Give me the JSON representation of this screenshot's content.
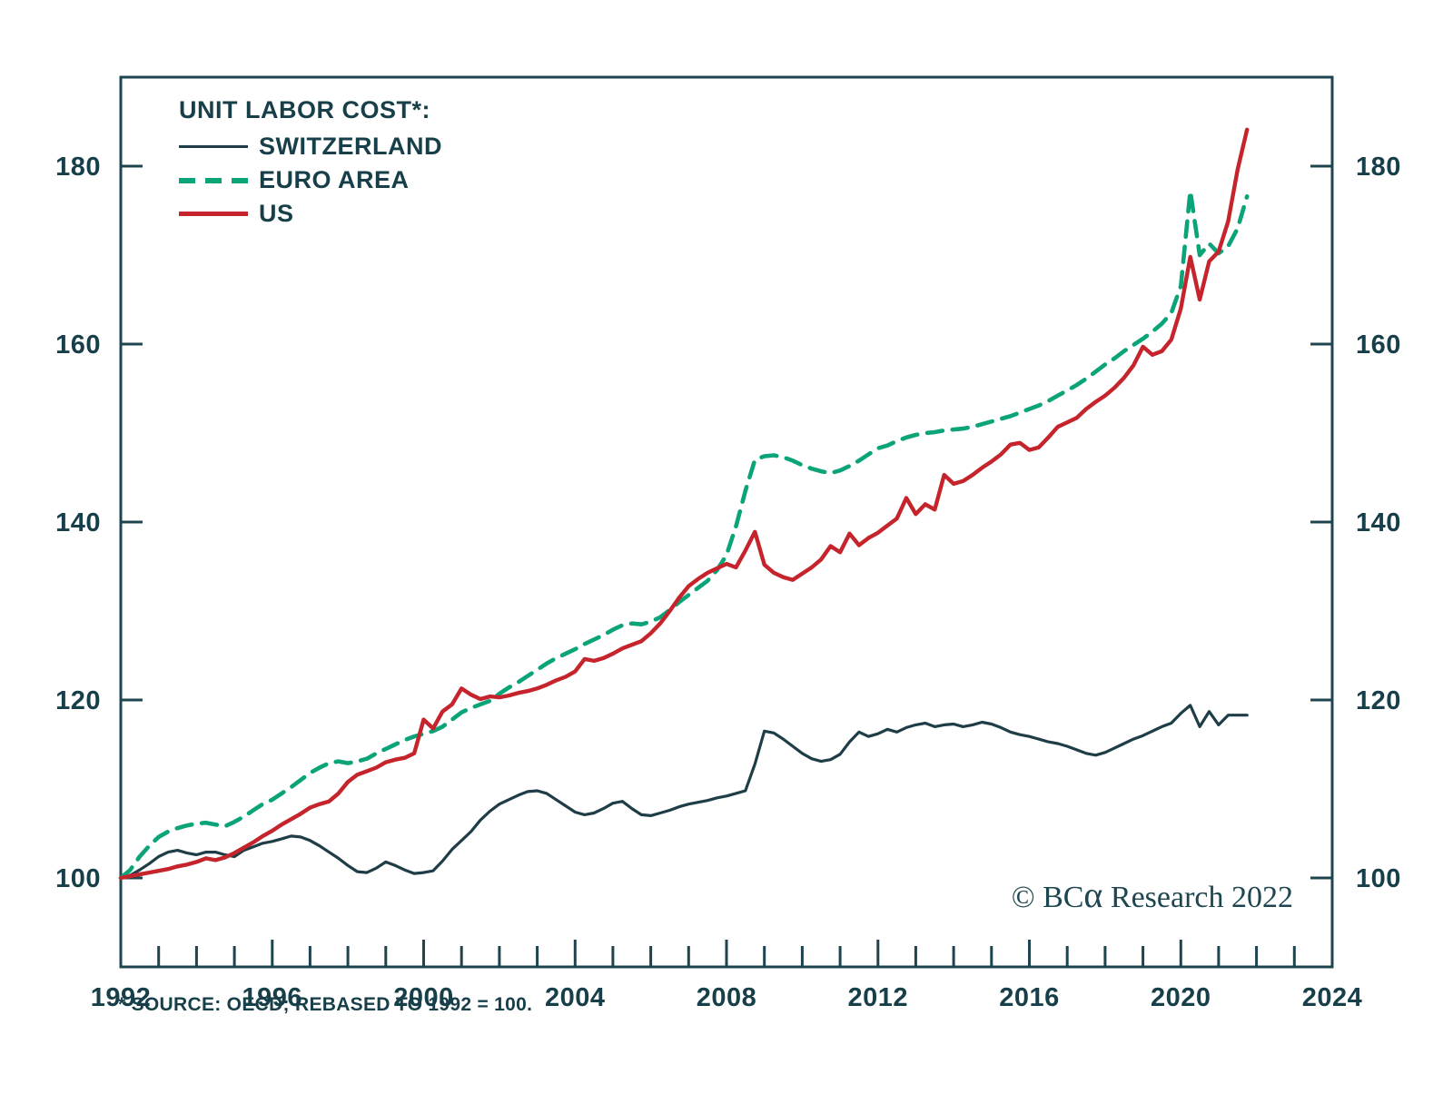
{
  "legend": {
    "title": "UNIT LABOR COST*:"
  },
  "footnote": "* SOURCE: OECD; REBASED TO 1992 = 100.",
  "copyright": {
    "prefix": "© BC",
    "alpha": "α",
    "suffix": " Research",
    "year": "2022"
  },
  "colors": {
    "text": "#173f49",
    "axis": "#1e4450",
    "switzerland": "#1f3d47",
    "euro_area": "#0aa478",
    "us": "#c6242c"
  },
  "chart_data": {
    "type": "line",
    "title": "UNIT LABOR COST*:",
    "xlabel": "",
    "ylabel": "",
    "xlim": [
      1992,
      2024
    ],
    "ylim": [
      90,
      190
    ],
    "x_ticks": [
      1992,
      1996,
      2000,
      2004,
      2008,
      2012,
      2016,
      2020,
      2024
    ],
    "x_minor_step": 1,
    "y_ticks": [
      100,
      120,
      140,
      160,
      180
    ],
    "grid": false,
    "legend_position": "top-left",
    "x_start": 1992,
    "x_step": 0.25,
    "series": [
      {
        "name": "SWITZERLAND",
        "style": "solid",
        "color_key": "switzerland",
        "values": [
          100.0,
          100.3,
          100.9,
          101.6,
          102.4,
          102.9,
          103.1,
          102.8,
          102.6,
          102.9,
          102.9,
          102.6,
          102.4,
          103.1,
          103.5,
          103.9,
          104.1,
          104.4,
          104.7,
          104.6,
          104.2,
          103.6,
          102.9,
          102.2,
          101.4,
          100.7,
          100.6,
          101.1,
          101.8,
          101.4,
          100.9,
          100.5,
          100.6,
          100.8,
          101.9,
          103.2,
          104.2,
          105.2,
          106.5,
          107.5,
          108.3,
          108.8,
          109.3,
          109.7,
          109.8,
          109.5,
          108.8,
          108.1,
          107.4,
          107.1,
          107.3,
          107.8,
          108.4,
          108.6,
          107.8,
          107.1,
          107.0,
          107.3,
          107.6,
          108.0,
          108.3,
          108.5,
          108.7,
          109.0,
          109.2,
          109.5,
          109.8,
          112.8,
          116.5,
          116.3,
          115.6,
          114.8,
          114.0,
          113.4,
          113.1,
          113.3,
          113.9,
          115.3,
          116.4,
          115.9,
          116.2,
          116.7,
          116.4,
          116.9,
          117.2,
          117.4,
          117.0,
          117.2,
          117.3,
          117.0,
          117.2,
          117.5,
          117.3,
          116.9,
          116.4,
          116.1,
          115.9,
          115.6,
          115.3,
          115.1,
          114.8,
          114.4,
          114.0,
          113.8,
          114.1,
          114.6,
          115.1,
          115.6,
          116.0,
          116.5,
          117.0,
          117.4,
          118.5,
          119.4,
          117.0,
          118.7,
          117.2,
          118.3,
          118.3,
          118.3
        ]
      },
      {
        "name": "EURO AREA",
        "style": "dashed",
        "color_key": "euro_area",
        "values": [
          100.0,
          100.9,
          102.4,
          103.6,
          104.6,
          105.2,
          105.6,
          105.9,
          106.1,
          106.2,
          106.0,
          105.8,
          106.3,
          106.9,
          107.6,
          108.3,
          108.8,
          109.5,
          110.2,
          111.0,
          111.8,
          112.4,
          112.9,
          113.1,
          112.9,
          113.1,
          113.4,
          114.0,
          114.5,
          115.0,
          115.5,
          115.9,
          116.2,
          116.5,
          117.0,
          117.8,
          118.6,
          119.1,
          119.5,
          119.9,
          120.7,
          121.4,
          122.0,
          122.7,
          123.4,
          124.1,
          124.7,
          125.2,
          125.7,
          126.3,
          126.8,
          127.3,
          127.9,
          128.4,
          128.6,
          128.5,
          128.8,
          129.3,
          130.1,
          131.0,
          131.8,
          132.6,
          133.4,
          134.6,
          136.3,
          139.5,
          143.5,
          147.0,
          147.4,
          147.5,
          147.3,
          146.9,
          146.4,
          146.0,
          145.7,
          145.5,
          145.8,
          146.3,
          146.9,
          147.6,
          148.3,
          148.6,
          149.1,
          149.5,
          149.8,
          150.0,
          150.1,
          150.3,
          150.4,
          150.5,
          150.7,
          151.0,
          151.3,
          151.6,
          151.9,
          152.3,
          152.7,
          153.1,
          153.6,
          154.2,
          154.8,
          155.4,
          156.1,
          156.9,
          157.7,
          158.4,
          159.2,
          159.9,
          160.6,
          161.4,
          162.3,
          163.5,
          166.5,
          177.2,
          170.0,
          171.3,
          170.2,
          171.0,
          173.0,
          176.6
        ]
      },
      {
        "name": "US",
        "style": "solid",
        "color_key": "us",
        "values": [
          100.0,
          100.2,
          100.4,
          100.6,
          100.8,
          101.0,
          101.3,
          101.5,
          101.8,
          102.2,
          102.0,
          102.3,
          102.8,
          103.4,
          104.0,
          104.7,
          105.3,
          106.0,
          106.6,
          107.2,
          107.9,
          108.3,
          108.6,
          109.5,
          110.8,
          111.6,
          112.0,
          112.4,
          113.0,
          113.3,
          113.5,
          114.0,
          117.8,
          116.8,
          118.7,
          119.5,
          121.3,
          120.6,
          120.1,
          120.4,
          120.3,
          120.5,
          120.8,
          121.0,
          121.3,
          121.7,
          122.2,
          122.6,
          123.2,
          124.6,
          124.4,
          124.7,
          125.2,
          125.8,
          126.2,
          126.6,
          127.5,
          128.6,
          130.0,
          131.5,
          132.8,
          133.6,
          134.3,
          134.8,
          135.3,
          134.9,
          136.8,
          138.9,
          135.2,
          134.3,
          133.8,
          133.5,
          134.2,
          134.9,
          135.8,
          137.3,
          136.6,
          138.7,
          137.4,
          138.2,
          138.8,
          139.6,
          140.4,
          142.7,
          140.9,
          142.0,
          141.4,
          145.3,
          144.3,
          144.6,
          145.3,
          146.1,
          146.8,
          147.6,
          148.7,
          148.9,
          148.1,
          148.4,
          149.5,
          150.7,
          151.2,
          151.7,
          152.7,
          153.5,
          154.2,
          155.1,
          156.2,
          157.6,
          159.7,
          158.8,
          159.2,
          160.5,
          164.0,
          169.8,
          165.0,
          169.3,
          170.4,
          173.8,
          179.6,
          184.1
        ]
      }
    ]
  }
}
